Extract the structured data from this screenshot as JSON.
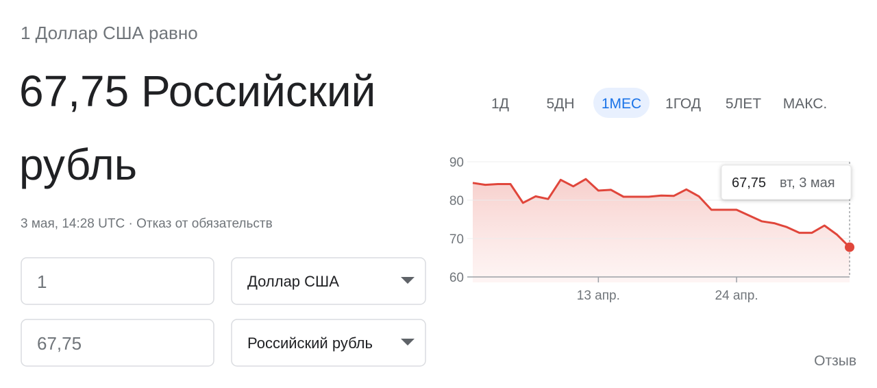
{
  "header": {
    "subtitle": "1 Доллар США равно",
    "result_line1": "67,75 Российский",
    "result_line2": "рубль",
    "timestamp": "3 мая, 14:28 UTC · ",
    "disclaimer": "Отказ от обязательств"
  },
  "converter": {
    "rows": [
      {
        "amount": "1",
        "currency": "Доллар США"
      },
      {
        "amount": "67,75",
        "currency": "Российский рубль"
      }
    ]
  },
  "tabs": [
    "1Д",
    "5ДН",
    "1МЕС",
    "1ГОД",
    "5ЛЕТ",
    "МАКС."
  ],
  "active_tab": 2,
  "tooltip": {
    "value": "67,75",
    "date": "вт, 3 мая"
  },
  "feedback": "Отзыв",
  "chart_data": {
    "type": "line",
    "categories": [
      null,
      null,
      null,
      null,
      null,
      null,
      null,
      null,
      null,
      null,
      "13 апр.",
      null,
      null,
      null,
      null,
      null,
      null,
      null,
      null,
      null,
      null,
      "24 апр.",
      null,
      null,
      null,
      null,
      null,
      null,
      null,
      null,
      null
    ],
    "values": [
      84.5,
      84.0,
      84.2,
      84.2,
      79.3,
      81.0,
      80.3,
      85.3,
      83.6,
      85.5,
      82.5,
      82.7,
      80.9,
      80.9,
      80.9,
      81.2,
      81.1,
      82.8,
      81.0,
      77.5,
      77.5,
      77.5,
      76.0,
      74.5,
      74.0,
      73.0,
      71.5,
      71.5,
      73.4,
      71.0,
      67.75
    ],
    "color": "#e0463b",
    "ylim": [
      60,
      90
    ],
    "yticks": [
      60,
      70,
      80,
      90
    ],
    "grid": true
  }
}
